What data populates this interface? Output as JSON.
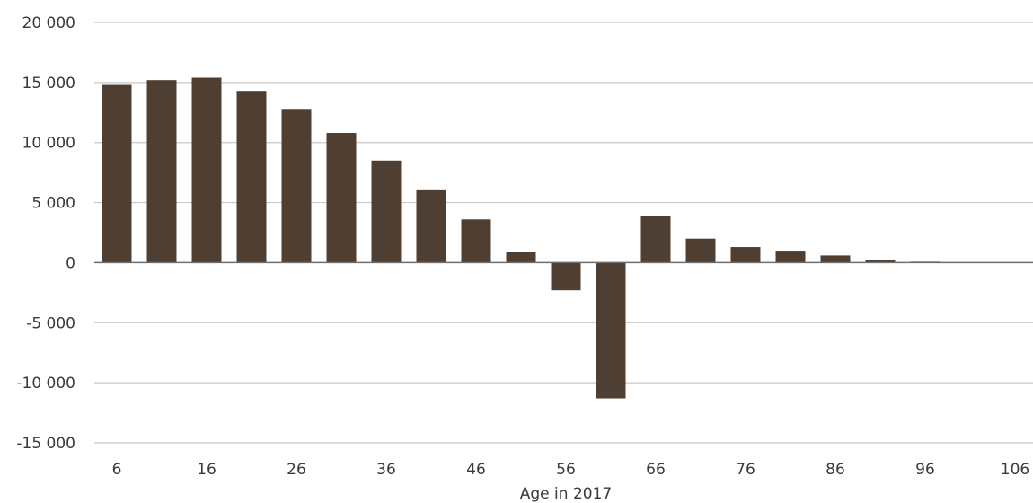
{
  "chart_data": {
    "type": "bar",
    "title": "",
    "xlabel": "Age in 2017",
    "ylabel": "",
    "categories": [
      6,
      11,
      16,
      21,
      26,
      31,
      36,
      41,
      46,
      51,
      56,
      61,
      66,
      71,
      76,
      81,
      86,
      91,
      96,
      101,
      106
    ],
    "values": [
      14800,
      15200,
      15400,
      14300,
      12800,
      10800,
      8500,
      6100,
      3600,
      900,
      -2300,
      -11300,
      3900,
      2000,
      1300,
      1000,
      600,
      250,
      80,
      20,
      0
    ],
    "x_tick_labels": [
      "6",
      "16",
      "26",
      "36",
      "46",
      "56",
      "66",
      "76",
      "86",
      "96",
      "106"
    ],
    "y_tick_values": [
      20000,
      15000,
      10000,
      5000,
      0,
      -5000,
      -10000,
      -15000
    ],
    "y_tick_labels": [
      "20 000",
      "15 000",
      "10 000",
      "5 000",
      "0",
      "-5 000",
      "-10 000",
      "-15 000"
    ],
    "ylim": [
      -15000,
      20000
    ],
    "grid": "horizontal",
    "legend": "none",
    "colors": {
      "bar": "#4f3f32",
      "grid": "#c8c8c8",
      "zero_line": "#6e6e6e"
    }
  }
}
